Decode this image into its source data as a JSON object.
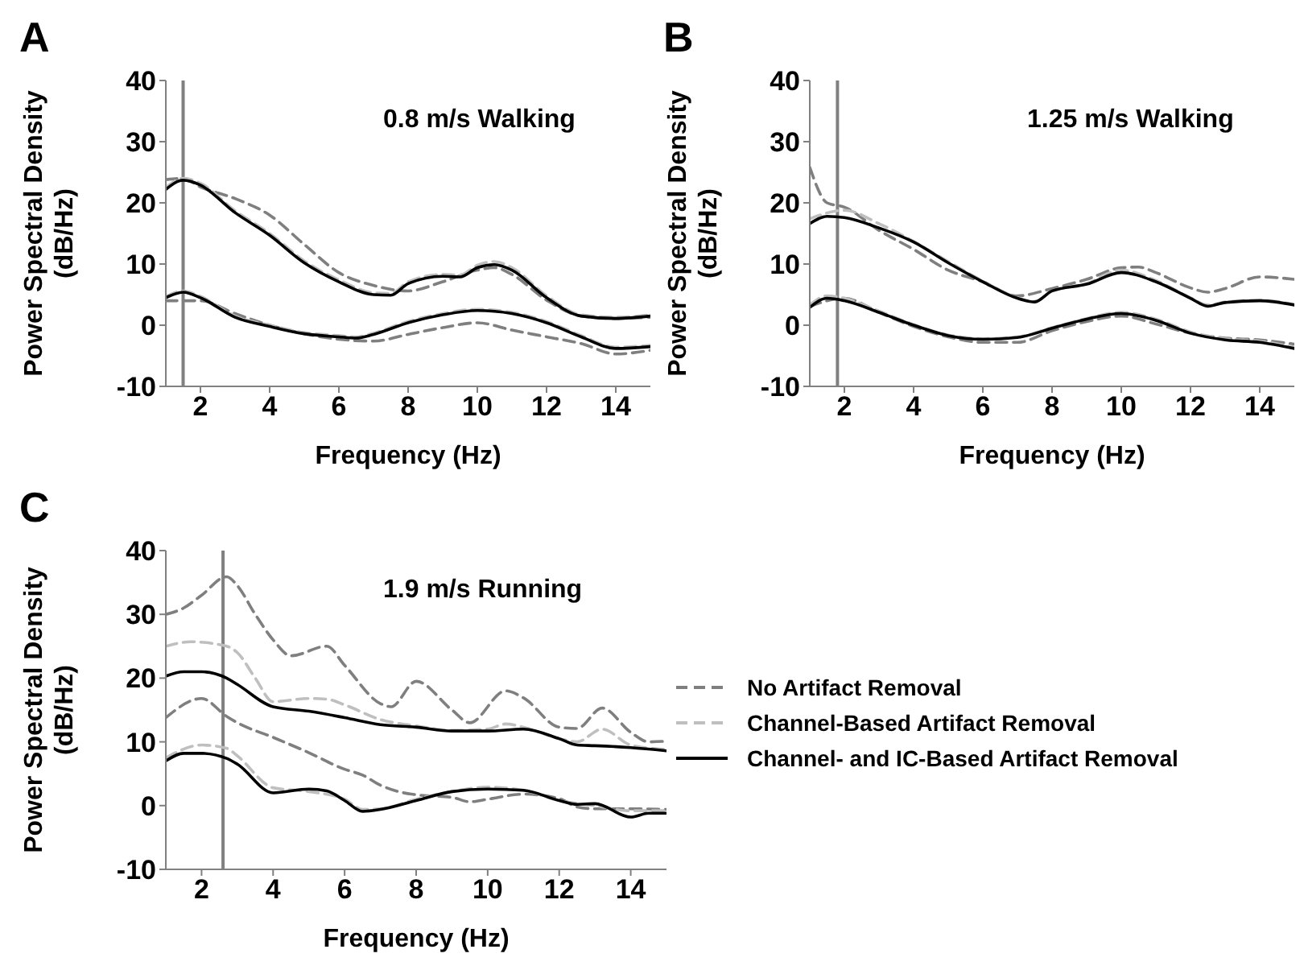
{
  "chart_data": [
    {
      "type": "line",
      "title": "A",
      "subtitle": "0.8 m/s Walking",
      "xlabel": "Frequency (Hz)",
      "ylabel": "Power Spectral Density (dB/Hz)",
      "xlim": [
        1,
        15
      ],
      "xticks": [
        2,
        4,
        6,
        8,
        10,
        12,
        14
      ],
      "ylim": [
        -10,
        40
      ],
      "yticks": [
        -10,
        0,
        10,
        20,
        30,
        40
      ],
      "legend": false,
      "marker": "none",
      "ref_lines": [
        {
          "axis": "x",
          "value": 1.5,
          "color": "#808080"
        }
      ],
      "series": [
        {
          "color": "#7f7f7f",
          "line_style": "dashed",
          "x": [
            1,
            1.5,
            2,
            3,
            4,
            5,
            6,
            7,
            8,
            9,
            10,
            10.5,
            11,
            12,
            13,
            14,
            15
          ],
          "values": [
            23.8,
            24,
            22.6,
            20.7,
            18,
            13.2,
            8.6,
            6.5,
            5.6,
            7.1,
            9,
            9.4,
            8.3,
            4.1,
            1.5,
            1.1,
            1.3
          ]
        },
        {
          "color": "#bfbfbf",
          "line_style": "dashed",
          "x": [
            1,
            1.5,
            2,
            3,
            4,
            5,
            6,
            7,
            7.5,
            8,
            9,
            9.5,
            10,
            10.5,
            11,
            12,
            13,
            14,
            15
          ],
          "values": [
            22.5,
            24,
            23.2,
            18.7,
            15,
            10.5,
            7.4,
            5.3,
            5.2,
            7.1,
            8.3,
            8.2,
            9.8,
            10.4,
            9.4,
            4.8,
            1.7,
            1.3,
            1.7
          ]
        },
        {
          "color": "#000000",
          "line_style": "solid",
          "x": [
            1,
            1.5,
            2,
            3,
            4,
            5,
            6,
            7,
            7.5,
            8,
            9,
            9.5,
            10,
            10.5,
            11,
            12,
            13,
            14,
            15
          ],
          "values": [
            22.2,
            23.7,
            22.9,
            18.4,
            14.7,
            10.2,
            7.1,
            5,
            4.9,
            6.8,
            8,
            7.9,
            9.4,
            9.9,
            9,
            4.5,
            1.5,
            1.1,
            1.5
          ]
        },
        {
          "color": "#7f7f7f",
          "line_style": "dashed",
          "x": [
            1,
            2,
            3,
            4,
            5,
            6,
            7,
            8,
            9,
            10,
            11,
            12,
            13,
            14,
            15
          ],
          "values": [
            4,
            4,
            1.9,
            0,
            -1.4,
            -2.3,
            -2.6,
            -1.5,
            -0.4,
            0.4,
            -0.8,
            -1.9,
            -3,
            -4.7,
            -4.1
          ]
        },
        {
          "color": "#bfbfbf",
          "line_style": "dashed",
          "x": [
            1,
            1.5,
            2,
            3,
            4,
            5,
            6,
            6.5,
            7,
            8,
            9,
            10,
            11,
            12,
            13,
            14,
            15
          ],
          "values": [
            4.7,
            5.6,
            4.7,
            1.5,
            0,
            -1.2,
            -1.7,
            -1.9,
            -1.3,
            0.6,
            1.9,
            2.6,
            2.1,
            0.6,
            -1.7,
            -3.6,
            -3.3
          ]
        },
        {
          "color": "#000000",
          "line_style": "solid",
          "x": [
            1,
            1.5,
            2,
            3,
            4,
            5,
            6,
            6.5,
            7,
            8,
            9,
            10,
            11,
            12,
            13,
            14,
            15
          ],
          "values": [
            4.5,
            5.4,
            4.5,
            1.3,
            -0.2,
            -1.4,
            -1.9,
            -2.1,
            -1.5,
            0.4,
            1.7,
            2.4,
            1.9,
            0.4,
            -1.9,
            -3.8,
            -3.5
          ]
        }
      ]
    },
    {
      "type": "line",
      "title": "B",
      "subtitle": "1.25 m/s Walking",
      "xlabel": "Frequency (Hz)",
      "ylabel": "Power Spectral Density (dB/Hz)",
      "xlim": [
        1,
        15
      ],
      "xticks": [
        2,
        4,
        6,
        8,
        10,
        12,
        14
      ],
      "ylim": [
        -10,
        40
      ],
      "yticks": [
        -10,
        0,
        10,
        20,
        30,
        40
      ],
      "legend": false,
      "marker": "none",
      "ref_lines": [
        {
          "axis": "x",
          "value": 1.8,
          "color": "#808080"
        }
      ],
      "series": [
        {
          "color": "#7f7f7f",
          "line_style": "dashed",
          "x": [
            1,
            1.5,
            2,
            3,
            4,
            5,
            6,
            7,
            8,
            9,
            10,
            10.5,
            11,
            12,
            12.5,
            13,
            14,
            15
          ],
          "values": [
            25.8,
            20,
            19.3,
            15.5,
            12.4,
            9,
            7.1,
            4.8,
            6,
            7.5,
            9.4,
            9.5,
            8.6,
            6.1,
            5.4,
            6,
            7.9,
            7.5
          ]
        },
        {
          "color": "#bfbfbf",
          "line_style": "dashed",
          "x": [
            1,
            2,
            3,
            4,
            5,
            6,
            7,
            7.5,
            8,
            9,
            10,
            11,
            12,
            12.5,
            13,
            14,
            15
          ],
          "values": [
            17.4,
            18.8,
            16.6,
            13.7,
            10.4,
            7.2,
            4.5,
            3.9,
            5.6,
            6.8,
            9,
            7.3,
            4.5,
            3.3,
            3.8,
            4.1,
            3.4
          ]
        },
        {
          "color": "#000000",
          "line_style": "solid",
          "x": [
            1,
            1.5,
            2,
            3,
            4,
            5,
            6,
            7,
            7.5,
            8,
            9,
            10,
            11,
            12,
            12.5,
            13,
            14,
            15
          ],
          "values": [
            16.6,
            17.8,
            17.6,
            15.9,
            13.6,
            10.2,
            7.1,
            4.4,
            3.8,
            5.6,
            6.7,
            8.6,
            7.1,
            4.4,
            3.1,
            3.7,
            4,
            3.3
          ]
        },
        {
          "color": "#7f7f7f",
          "line_style": "dashed",
          "x": [
            1,
            2,
            3,
            4,
            5,
            6,
            7,
            8,
            9,
            10,
            11,
            12,
            13,
            14,
            15
          ],
          "values": [
            3.1,
            4.4,
            2.1,
            -0.2,
            -1.9,
            -2.8,
            -2.8,
            -0.9,
            0.6,
            1.5,
            0.2,
            -1.3,
            -2.1,
            -2.4,
            -3.1
          ]
        },
        {
          "color": "#bfbfbf",
          "line_style": "dashed",
          "x": [
            1,
            1.5,
            2,
            3,
            4,
            5,
            6,
            7,
            8,
            9,
            10,
            11,
            12,
            13,
            14,
            15
          ],
          "values": [
            3.3,
            4.8,
            4.4,
            2.3,
            0.1,
            -1.6,
            -2.2,
            -1.9,
            -0.4,
            1.1,
            2.1,
            1,
            -1.1,
            -2.2,
            -2.6,
            -3.6
          ]
        },
        {
          "color": "#000000",
          "line_style": "solid",
          "x": [
            1,
            1.5,
            2,
            3,
            4,
            5,
            6,
            7,
            8,
            9,
            10,
            11,
            12,
            13,
            14,
            15
          ],
          "values": [
            2.9,
            4.4,
            4,
            2.1,
            0,
            -1.7,
            -2.3,
            -2,
            -0.5,
            1,
            1.9,
            0.8,
            -1.3,
            -2.4,
            -2.8,
            -3.8
          ]
        }
      ]
    },
    {
      "type": "line",
      "title": "C",
      "subtitle": "1.9 m/s Running",
      "xlabel": "Frequency (Hz)",
      "ylabel": "Power Spectral Density (dB/Hz)",
      "xlim": [
        1,
        15
      ],
      "xticks": [
        2,
        4,
        6,
        8,
        10,
        12,
        14
      ],
      "ylim": [
        -10,
        40
      ],
      "yticks": [
        -10,
        0,
        10,
        20,
        30,
        40
      ],
      "legend": "right",
      "marker": "none",
      "ref_lines": [
        {
          "axis": "x",
          "value": 2.6,
          "color": "#808080"
        }
      ],
      "series": [
        {
          "name": "No Artifact Removal",
          "color": "#7f7f7f",
          "line_style": "dashed",
          "x": [
            1,
            1.5,
            2,
            2.7,
            3,
            3.5,
            4,
            4.5,
            5.5,
            6,
            7,
            7.3,
            8,
            9,
            9.5,
            10.5,
            11,
            12,
            12.5,
            13.2,
            14,
            14.5,
            15
          ],
          "values": [
            30,
            31,
            33,
            35.9,
            34.5,
            30,
            26,
            23.5,
            25,
            22,
            16,
            15.5,
            19.5,
            15,
            13,
            18,
            16.9,
            12.3,
            12.1,
            15.3,
            11.5,
            10,
            10.1
          ]
        },
        {
          "name": "Channel-Based Artifact Removal",
          "color": "#bfbfbf",
          "line_style": "dashed",
          "x": [
            1,
            1.7,
            2.7,
            3,
            3.5,
            4,
            5,
            5.5,
            6,
            7,
            8,
            9,
            10,
            10.5,
            11,
            12,
            12.5,
            13.2,
            14,
            15
          ],
          "values": [
            25,
            25.7,
            25,
            24,
            20,
            16.3,
            16.8,
            16.7,
            15.8,
            13.5,
            12.5,
            11.8,
            12,
            12.8,
            12.3,
            10.5,
            10,
            12,
            9.5,
            8.8
          ]
        },
        {
          "name": "Channel- and IC-Based Artifact Removal",
          "color": "#000000",
          "line_style": "solid",
          "x": [
            1,
            1.5,
            2,
            2.7,
            3,
            4,
            5,
            6,
            7,
            8,
            9,
            10,
            11,
            12,
            12.5,
            13,
            14,
            15
          ],
          "values": [
            20.3,
            21,
            21,
            20,
            19,
            15.5,
            14.8,
            13.8,
            12.7,
            12.3,
            11.7,
            11.7,
            12,
            10.5,
            9.5,
            9.4,
            9.1,
            8.6
          ]
        },
        {
          "color": "#7f7f7f",
          "line_style": "dashed",
          "x": [
            1,
            2,
            2.7,
            3,
            4,
            5,
            6,
            6.5,
            7,
            7.5,
            8,
            9,
            9.5,
            10,
            11,
            12,
            12.5,
            13,
            14,
            15
          ],
          "values": [
            13.8,
            16.8,
            14,
            13,
            10.7,
            8.3,
            5.7,
            4.8,
            3.2,
            2.2,
            1.7,
            1.3,
            0.6,
            1,
            1.8,
            1.1,
            -0.2,
            -0.5,
            -0.5,
            -0.6
          ]
        },
        {
          "color": "#bfbfbf",
          "line_style": "dashed",
          "x": [
            1,
            2,
            2.7,
            3,
            4,
            5,
            6,
            6.5,
            7,
            8,
            9,
            10,
            11,
            12,
            13,
            14,
            15
          ],
          "values": [
            7.5,
            9.5,
            9,
            7.8,
            2.8,
            2.2,
            1,
            -0.6,
            -0.5,
            1,
            2.2,
            2.9,
            2.4,
            0.8,
            0,
            -0.8,
            -0.8
          ]
        },
        {
          "color": "#000000",
          "line_style": "solid",
          "x": [
            1,
            1.5,
            2,
            2.7,
            3,
            4,
            5,
            5.5,
            6,
            6.5,
            7,
            8,
            9,
            10,
            11,
            12,
            12.5,
            13,
            14,
            14.5,
            15
          ],
          "values": [
            7,
            8.2,
            8.2,
            7.4,
            6.5,
            2,
            2.6,
            2.3,
            0.8,
            -0.9,
            -0.6,
            0.8,
            2.2,
            2.6,
            2.4,
            0.8,
            0.2,
            0.3,
            -1.8,
            -1.2,
            -1.2
          ]
        }
      ]
    }
  ]
}
